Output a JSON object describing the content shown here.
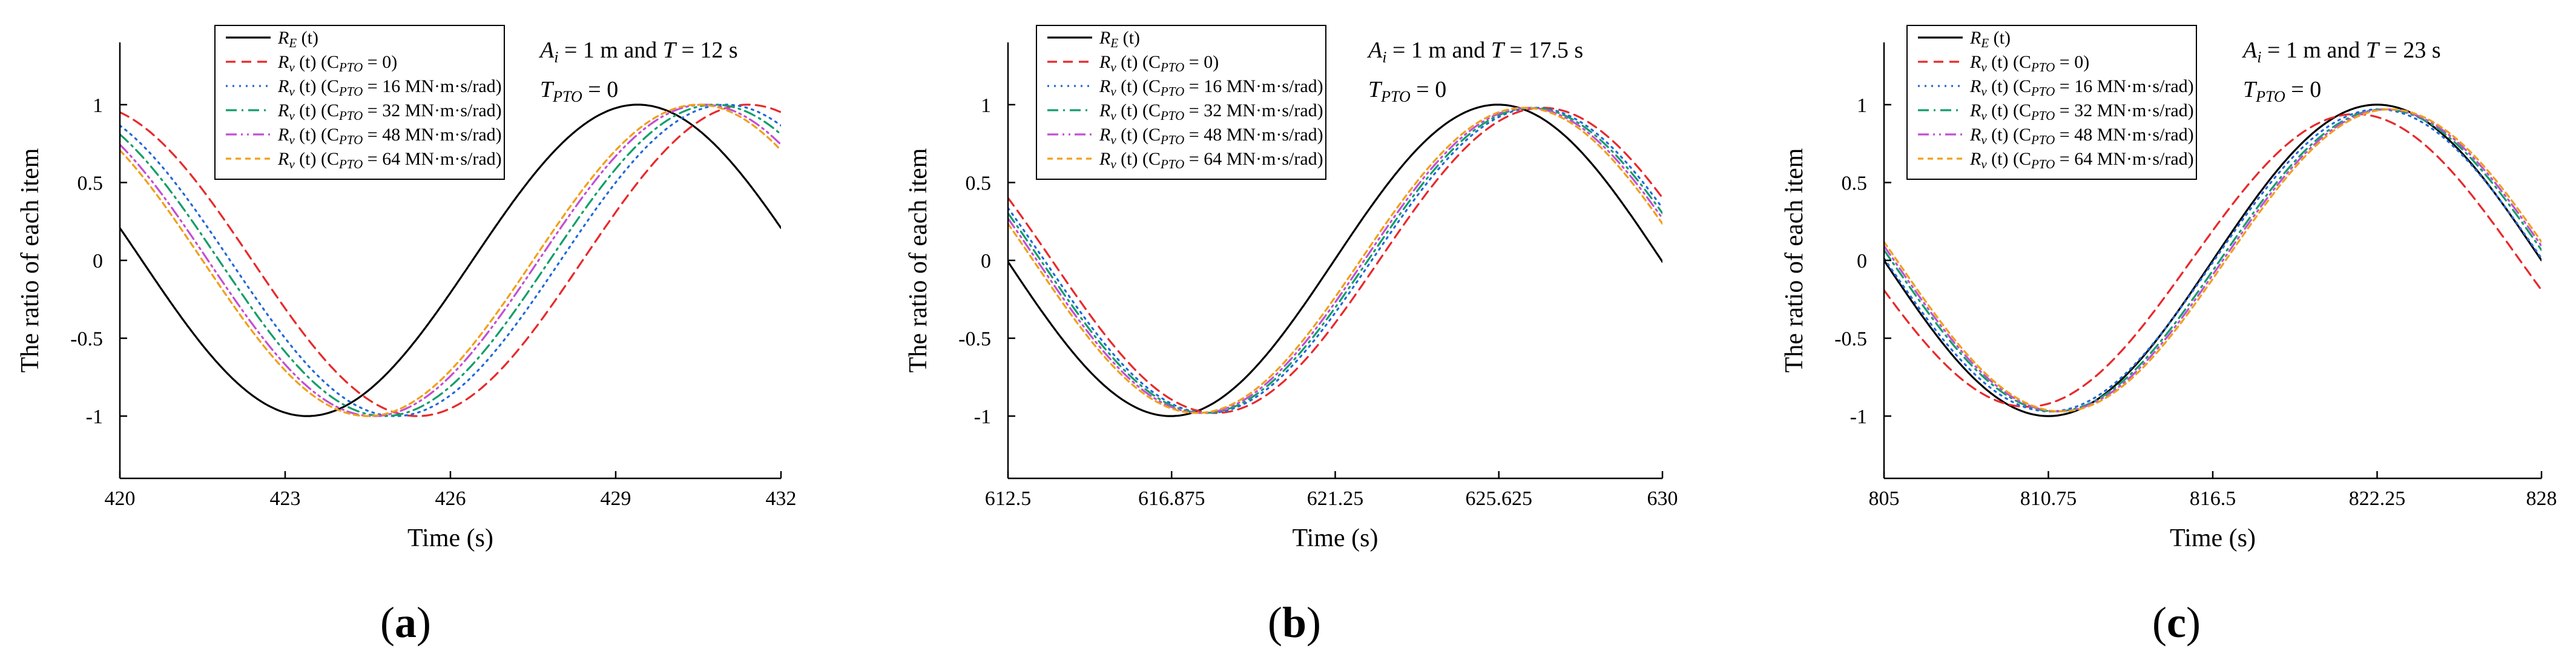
{
  "colors": {
    "excitation": "#000000",
    "cpto_0": "#e8292b",
    "cpto_16": "#2369d8",
    "cpto_32": "#129e6a",
    "cpto_48": "#c24fd4",
    "cpto_64": "#f0a019"
  },
  "chart_data": [
    {
      "type": "line",
      "panel_label_open": "(",
      "panel_label_letter": "a",
      "panel_label_close": ")",
      "xlabel": "Time (s)",
      "ylabel": "The ratio of each item",
      "xlim": [
        420,
        432
      ],
      "ylim": [
        -1.4,
        1.4
      ],
      "xticks": [
        "420",
        "423",
        "426",
        "429",
        "432"
      ],
      "yticks": [
        "-1",
        "-0.5",
        "0",
        "0.5",
        "1"
      ],
      "annotation": {
        "line1_pre": "A",
        "line1_sub": "i",
        "line1_mid": " = 1 m and ",
        "line1_var": "T",
        "line1_post": " = 12 s",
        "line2_var": "T",
        "line2_sub": "PTO",
        "line2_post": " = 0"
      },
      "period": 12,
      "series": [
        {
          "name": "R_E (t)",
          "legend_main": "R",
          "legend_sub": "E",
          "legend_suffix": " (t)",
          "color_key": "excitation",
          "dash": "solid",
          "peak_time": 429.4,
          "amplitude": 1.0
        },
        {
          "name": "R_v (t) (C_PTO = 0)",
          "legend_main": "R",
          "legend_sub": "v",
          "legend_mid": " (t) (C",
          "legend_sub2": "PTO",
          "legend_suffix": " = 0)",
          "color_key": "cpto_0",
          "dash": "dashed",
          "peak_time": 431.4,
          "amplitude": 1.0
        },
        {
          "name": "R_v (t) (C_PTO = 16 MN·m·s/rad)",
          "legend_main": "R",
          "legend_sub": "v",
          "legend_mid": " (t) (C",
          "legend_sub2": "PTO",
          "legend_suffix": " = 16 MN·m·s/rad)",
          "color_key": "cpto_16",
          "dash": "dotted",
          "peak_time": 431.0,
          "amplitude": 1.0
        },
        {
          "name": "R_v (t) (C_PTO = 32 MN·m·s/rad)",
          "legend_main": "R",
          "legend_sub": "v",
          "legend_mid": " (t) (C",
          "legend_sub2": "PTO",
          "legend_suffix": " = 32 MN·m·s/rad)",
          "color_key": "cpto_32",
          "dash": "dashdot",
          "peak_time": 430.8,
          "amplitude": 1.0
        },
        {
          "name": "R_v (t) (C_PTO = 48 MN·m·s/rad)",
          "legend_main": "R",
          "legend_sub": "v",
          "legend_mid": " (t) (C",
          "legend_sub2": "PTO",
          "legend_suffix": " = 48 MN·m·s/rad)",
          "color_key": "cpto_48",
          "dash": "dashdotdot",
          "peak_time": 430.6,
          "amplitude": 1.0
        },
        {
          "name": "R_v (t) (C_PTO = 64 MN·m·s/rad)",
          "legend_main": "R",
          "legend_sub": "v",
          "legend_mid": " (t) (C",
          "legend_sub2": "PTO",
          "legend_suffix": " = 64 MN·m·s/rad)",
          "color_key": "cpto_64",
          "dash": "shortdash",
          "peak_time": 430.5,
          "amplitude": 1.0
        }
      ]
    },
    {
      "type": "line",
      "panel_label_open": "(",
      "panel_label_letter": "b",
      "panel_label_close": ")",
      "xlabel": "Time (s)",
      "ylabel": "The ratio of each item",
      "xlim": [
        612.5,
        630
      ],
      "ylim": [
        -1.4,
        1.4
      ],
      "xticks": [
        "612.5",
        "616.875",
        "621.25",
        "625.625",
        "630"
      ],
      "yticks": [
        "-1",
        "-0.5",
        "0",
        "0.5",
        "1"
      ],
      "annotation": {
        "line1_pre": "A",
        "line1_sub": "i",
        "line1_mid": " = 1 m and ",
        "line1_var": "T",
        "line1_post": " = 17.5 s",
        "line2_var": "T",
        "line2_sub": "PTO",
        "line2_post": " = 0"
      },
      "period": 17.5,
      "series": [
        {
          "name": "R_E (t)",
          "legend_main": "R",
          "legend_sub": "E",
          "legend_suffix": " (t)",
          "color_key": "excitation",
          "dash": "solid",
          "peak_time": 625.6,
          "amplitude": 1.0
        },
        {
          "name": "R_v (t) (C_PTO = 0)",
          "legend_main": "R",
          "legend_sub": "v",
          "legend_mid": " (t) (C",
          "legend_sub2": "PTO",
          "legend_suffix": " = 0)",
          "color_key": "cpto_0",
          "dash": "dashed",
          "peak_time": 626.8,
          "amplitude": 0.98
        },
        {
          "name": "R_v (t) (C_PTO = 16 MN·m·s/rad)",
          "legend_main": "R",
          "legend_sub": "v",
          "legend_mid": " (t) (C",
          "legend_sub2": "PTO",
          "legend_suffix": " = 16 MN·m·s/rad)",
          "color_key": "cpto_16",
          "dash": "dotted",
          "peak_time": 626.6,
          "amplitude": 0.98
        },
        {
          "name": "R_v (t) (C_PTO = 32 MN·m·s/rad)",
          "legend_main": "R",
          "legend_sub": "v",
          "legend_mid": " (t) (C",
          "legend_sub2": "PTO",
          "legend_suffix": " = 32 MN·m·s/rad)",
          "color_key": "cpto_32",
          "dash": "dashdot",
          "peak_time": 626.5,
          "amplitude": 0.98
        },
        {
          "name": "R_v (t) (C_PTO = 48 MN·m·s/rad)",
          "legend_main": "R",
          "legend_sub": "v",
          "legend_mid": " (t) (C",
          "legend_sub2": "PTO",
          "legend_suffix": " = 48 MN·m·s/rad)",
          "color_key": "cpto_48",
          "dash": "dashdotdot",
          "peak_time": 626.4,
          "amplitude": 0.98
        },
        {
          "name": "R_v (t) (C_PTO = 64 MN·m·s/rad)",
          "legend_main": "R",
          "legend_sub": "v",
          "legend_mid": " (t) (C",
          "legend_sub2": "PTO",
          "legend_suffix": " = 64 MN·m·s/rad)",
          "color_key": "cpto_64",
          "dash": "shortdash",
          "peak_time": 626.3,
          "amplitude": 0.98
        }
      ]
    },
    {
      "type": "line",
      "panel_label_open": "(",
      "panel_label_letter": "c",
      "panel_label_close": ")",
      "xlabel": "Time (s)",
      "ylabel": "The ratio of each item",
      "xlim": [
        805,
        828
      ],
      "ylim": [
        -1.4,
        1.4
      ],
      "xticks": [
        "805",
        "810.75",
        "816.5",
        "822.25",
        "828"
      ],
      "yticks": [
        "-1",
        "-0.5",
        "0",
        "0.5",
        "1"
      ],
      "annotation": {
        "line1_pre": "A",
        "line1_sub": "i",
        "line1_mid": " = 1 m and ",
        "line1_var": "T",
        "line1_post": " = 23 s",
        "line2_var": "T",
        "line2_sub": "PTO",
        "line2_post": " = 0"
      },
      "period": 23,
      "series": [
        {
          "name": "R_E (t)",
          "legend_main": "R",
          "legend_sub": "E",
          "legend_suffix": " (t)",
          "color_key": "excitation",
          "dash": "solid",
          "peak_time": 822.25,
          "amplitude": 1.0
        },
        {
          "name": "R_v (t) (C_PTO = 0)",
          "legend_main": "R",
          "legend_sub": "v",
          "legend_mid": " (t) (C",
          "legend_sub2": "PTO",
          "legend_suffix": " = 0)",
          "color_key": "cpto_0",
          "dash": "dashed",
          "peak_time": 821.5,
          "amplitude": 0.94
        },
        {
          "name": "R_v (t) (C_PTO = 16 MN·m·s/rad)",
          "legend_main": "R",
          "legend_sub": "v",
          "legend_mid": " (t) (C",
          "legend_sub2": "PTO",
          "legend_suffix": " = 16 MN·m·s/rad)",
          "color_key": "cpto_16",
          "dash": "dotted",
          "peak_time": 822.3,
          "amplitude": 0.97
        },
        {
          "name": "R_v (t) (C_PTO = 32 MN·m·s/rad)",
          "legend_main": "R",
          "legend_sub": "v",
          "legend_mid": " (t) (C",
          "legend_sub2": "PTO",
          "legend_suffix": " = 32 MN·m·s/rad)",
          "color_key": "cpto_32",
          "dash": "dashdot",
          "peak_time": 822.5,
          "amplitude": 0.97
        },
        {
          "name": "R_v (t) (C_PTO = 48 MN·m·s/rad)",
          "legend_main": "R",
          "legend_sub": "v",
          "legend_mid": " (t) (C",
          "legend_sub2": "PTO",
          "legend_suffix": " = 48 MN·m·s/rad)",
          "color_key": "cpto_48",
          "dash": "dashdotdot",
          "peak_time": 822.6,
          "amplitude": 0.97
        },
        {
          "name": "R_v (t) (C_PTO = 64 MN·m·s/rad)",
          "legend_main": "R",
          "legend_sub": "v",
          "legend_mid": " (t) (C",
          "legend_sub2": "PTO",
          "legend_suffix": " = 64 MN·m·s/rad)",
          "color_key": "cpto_64",
          "dash": "shortdash",
          "peak_time": 822.7,
          "amplitude": 0.97
        }
      ]
    }
  ]
}
